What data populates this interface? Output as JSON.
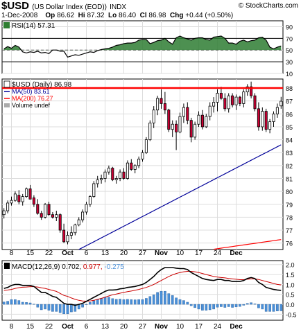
{
  "header": {
    "symbol": "$USD",
    "name": "(US Dollar Index (EOD))",
    "exchange": "INDX",
    "site": "© StockCharts.com",
    "date": "1-Dec-2008",
    "op_label": "Op",
    "op": "86.62",
    "hi_label": "Hi",
    "hi": "87.32",
    "lo_label": "Lo",
    "lo": "86.40",
    "cl_label": "Cl",
    "cl": "86.98",
    "chg_label": "Chg",
    "chg": "+0.44 (+0.50%)"
  },
  "chart_data": [
    {
      "type": "line",
      "panel": "rsi",
      "legend": "RSI(14) 57.31",
      "ylim": [
        10,
        100
      ],
      "yticks": [
        10,
        30,
        50,
        70,
        90
      ],
      "overbought": 70,
      "oversold": 30,
      "fill_color": "#2e7d32",
      "line_color": "#000000",
      "values": [
        52,
        56,
        53,
        58,
        55,
        47,
        45,
        47,
        46,
        48,
        45,
        46,
        44,
        50,
        50,
        48,
        48,
        38,
        40,
        42,
        41,
        43,
        45,
        47,
        46,
        49,
        51,
        52,
        53,
        55,
        58,
        59,
        61,
        62,
        62,
        63,
        67,
        68,
        68,
        61,
        63,
        66,
        67,
        70,
        64,
        60,
        71,
        74,
        71,
        69,
        67,
        70,
        71,
        71,
        68,
        67,
        72,
        73,
        74,
        70,
        62,
        62,
        60,
        65,
        67,
        64,
        66,
        67,
        71,
        72,
        67,
        55,
        52,
        55,
        57
      ]
    },
    {
      "type": "candlestick",
      "panel": "price",
      "legend": [
        "$USD (Daily) 86.98",
        "MA(50) 83.61",
        "MA(200) 76.27",
        "Volume undef"
      ],
      "ylim": [
        75.5,
        88.7
      ],
      "yticks": [
        76,
        77,
        78,
        79,
        80,
        81,
        82,
        83,
        84,
        85,
        86,
        87,
        88
      ],
      "xticks": [
        "8",
        "15",
        "22",
        "Oct",
        "6",
        "13",
        "20",
        "27",
        "Nov",
        "10",
        "17",
        "24",
        "Dec"
      ],
      "resistance_line": 88.0,
      "resistance_color": "#ff0000",
      "up_color": "#ffffff",
      "down_color": "#cc0033",
      "ma50_color": "#000099",
      "ma200_color": "#ff0000",
      "ohlc": [
        [
          78.2,
          78.7,
          77.9,
          78.5
        ],
        [
          78.5,
          79.3,
          78.3,
          79.1
        ],
        [
          79.1,
          79.6,
          78.9,
          79.3
        ],
        [
          79.3,
          80.0,
          79.2,
          79.8
        ],
        [
          79.7,
          80.1,
          79.0,
          79.2
        ],
        [
          79.2,
          79.8,
          78.9,
          79.6
        ],
        [
          79.6,
          80.3,
          79.5,
          80.2
        ],
        [
          80.2,
          80.5,
          79.4,
          79.4
        ],
        [
          79.5,
          79.7,
          78.8,
          79.0
        ],
        [
          79.0,
          79.4,
          78.2,
          78.3
        ],
        [
          78.3,
          78.5,
          77.8,
          78.0
        ],
        [
          78.0,
          79.1,
          77.9,
          79.0
        ],
        [
          79.0,
          79.2,
          78.1,
          78.2
        ],
        [
          78.2,
          78.4,
          77.9,
          78.0
        ],
        [
          78.0,
          78.5,
          77.7,
          78.2
        ],
        [
          78.2,
          78.3,
          76.8,
          77.0
        ],
        [
          77.0,
          77.5,
          76.0,
          76.1
        ],
        [
          76.1,
          76.9,
          75.9,
          76.6
        ],
        [
          76.6,
          77.3,
          76.3,
          76.8
        ],
        [
          76.8,
          77.5,
          76.6,
          77.4
        ],
        [
          77.4,
          78.0,
          77.3,
          77.8
        ],
        [
          77.8,
          78.6,
          77.6,
          78.4
        ],
        [
          78.4,
          79.2,
          78.2,
          79.0
        ],
        [
          79.0,
          79.7,
          78.8,
          79.6
        ],
        [
          79.6,
          80.8,
          79.5,
          80.6
        ],
        [
          80.6,
          81.2,
          80.3,
          80.9
        ],
        [
          80.9,
          81.3,
          80.6,
          81.0
        ],
        [
          81.0,
          81.7,
          80.7,
          81.5
        ],
        [
          81.5,
          82.0,
          81.3,
          81.8
        ],
        [
          81.8,
          81.9,
          80.8,
          80.9
        ],
        [
          80.9,
          81.2,
          80.6,
          81.0
        ],
        [
          81.0,
          81.7,
          80.8,
          81.5
        ],
        [
          81.5,
          81.8,
          80.9,
          81.0
        ],
        [
          81.0,
          82.4,
          80.9,
          82.2
        ],
        [
          82.2,
          82.5,
          81.6,
          81.7
        ],
        [
          81.7,
          82.1,
          81.4,
          82.0
        ],
        [
          82.0,
          82.7,
          81.8,
          82.5
        ],
        [
          82.5,
          83.2,
          82.3,
          83.0
        ],
        [
          83.0,
          84.2,
          82.9,
          84.0
        ],
        [
          84.0,
          85.5,
          83.9,
          85.3
        ],
        [
          85.3,
          86.6,
          84.9,
          86.3
        ],
        [
          86.3,
          87.4,
          85.9,
          87.2
        ],
        [
          87.2,
          87.9,
          86.4,
          86.8
        ],
        [
          86.8,
          87.7,
          86.0,
          86.3
        ],
        [
          86.3,
          86.4,
          84.6,
          84.8
        ],
        [
          84.8,
          85.5,
          84.2,
          85.2
        ],
        [
          85.2,
          85.5,
          83.2,
          84.6
        ],
        [
          84.6,
          86.1,
          84.5,
          85.8
        ],
        [
          85.8,
          86.8,
          85.3,
          86.5
        ],
        [
          86.5,
          86.9,
          85.2,
          85.5
        ],
        [
          85.5,
          85.7,
          83.8,
          84.2
        ],
        [
          84.2,
          85.4,
          84.0,
          85.2
        ],
        [
          85.2,
          86.2,
          85.0,
          85.9
        ],
        [
          85.9,
          86.3,
          84.8,
          85.0
        ],
        [
          85.0,
          86.0,
          84.9,
          85.8
        ],
        [
          85.8,
          86.9,
          85.5,
          86.6
        ],
        [
          86.6,
          87.3,
          86.1,
          86.9
        ],
        [
          86.9,
          87.9,
          86.2,
          87.6
        ],
        [
          87.6,
          88.1,
          87.1,
          87.2
        ],
        [
          87.2,
          87.6,
          86.2,
          86.4
        ],
        [
          86.4,
          87.6,
          86.1,
          87.4
        ],
        [
          87.4,
          87.6,
          86.5,
          86.7
        ],
        [
          86.7,
          87.5,
          86.3,
          87.3
        ],
        [
          87.3,
          87.4,
          86.6,
          86.8
        ],
        [
          86.8,
          87.9,
          86.5,
          87.7
        ],
        [
          87.7,
          88.3,
          87.4,
          88.1
        ],
        [
          88.1,
          88.5,
          87.2,
          87.4
        ],
        [
          87.4,
          87.6,
          86.2,
          86.4
        ],
        [
          86.4,
          86.9,
          84.7,
          85.0
        ],
        [
          85.0,
          86.5,
          84.7,
          86.2
        ],
        [
          86.2,
          86.4,
          84.6,
          84.8
        ],
        [
          84.8,
          85.6,
          84.5,
          85.4
        ],
        [
          85.4,
          86.2,
          85.0,
          86.0
        ],
        [
          86.0,
          86.8,
          85.7,
          86.5
        ],
        [
          86.62,
          87.32,
          86.4,
          86.98
        ]
      ],
      "ma50": {
        "start": 72.5,
        "end": 83.61
      },
      "ma200": {
        "start": 73.2,
        "end": 76.27
      }
    },
    {
      "type": "line",
      "panel": "macd",
      "legend": {
        "label": "MACD(12,26,9)",
        "macd": "0.702,",
        "signal": "0.977,",
        "hist": "-0.275"
      },
      "ylim": [
        -0.8,
        2.2
      ],
      "yticks": [
        "2.0",
        "1.5",
        "1.0",
        "0.5",
        "0.0",
        "-0.5"
      ],
      "macd_color": "#000000",
      "signal_color": "#cc0000",
      "hist_color": "#4a90d9",
      "macd": [
        0.8,
        0.85,
        0.95,
        1.0,
        1.0,
        0.95,
        0.95,
        0.95,
        0.9,
        0.75,
        0.6,
        0.6,
        0.5,
        0.4,
        0.35,
        0.2,
        0.05,
        0.0,
        0.0,
        -0.05,
        0.0,
        0.05,
        0.15,
        0.25,
        0.35,
        0.45,
        0.55,
        0.65,
        0.72,
        0.72,
        0.73,
        0.78,
        0.8,
        0.85,
        0.87,
        0.9,
        0.95,
        1.0,
        1.1,
        1.25,
        1.4,
        1.6,
        1.75,
        1.85,
        1.85,
        1.85,
        1.82,
        1.8,
        1.8,
        1.75,
        1.6,
        1.5,
        1.4,
        1.3,
        1.25,
        1.22,
        1.2,
        1.25,
        1.25,
        1.2,
        1.2,
        1.15,
        1.15,
        1.15,
        1.2,
        1.3,
        1.35,
        1.3,
        1.1,
        1.0,
        0.85,
        0.8,
        0.75,
        0.72,
        0.702
      ],
      "signal": [
        0.7,
        0.72,
        0.75,
        0.8,
        0.84,
        0.86,
        0.87,
        0.89,
        0.89,
        0.87,
        0.83,
        0.8,
        0.75,
        0.7,
        0.65,
        0.55,
        0.45,
        0.4,
        0.32,
        0.25,
        0.2,
        0.17,
        0.16,
        0.17,
        0.2,
        0.25,
        0.3,
        0.36,
        0.42,
        0.48,
        0.52,
        0.56,
        0.6,
        0.64,
        0.67,
        0.71,
        0.75,
        0.8,
        0.85,
        0.92,
        1.0,
        1.1,
        1.2,
        1.3,
        1.4,
        1.48,
        1.55,
        1.6,
        1.64,
        1.66,
        1.66,
        1.64,
        1.6,
        1.55,
        1.5,
        1.45,
        1.4,
        1.37,
        1.35,
        1.33,
        1.3,
        1.28,
        1.26,
        1.24,
        1.24,
        1.26,
        1.28,
        1.28,
        1.25,
        1.2,
        1.15,
        1.1,
        1.05,
        1.0,
        0.977
      ]
    }
  ]
}
